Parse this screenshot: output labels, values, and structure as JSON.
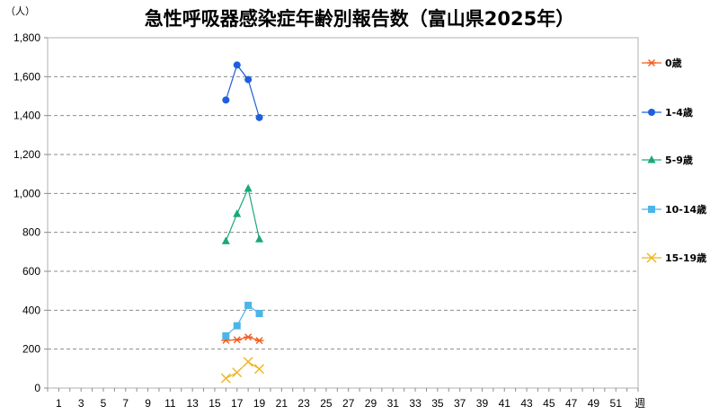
{
  "chart_data": {
    "type": "line",
    "title": "急性呼吸器感染症年齢別報告数（富山県2025年）",
    "ylabel": "（人）",
    "xlabel": "週",
    "ylim": [
      0,
      1800
    ],
    "yticks": [
      0,
      200,
      400,
      600,
      800,
      1000,
      1200,
      1400,
      1600,
      1800
    ],
    "ytick_labels": [
      "0",
      "200",
      "400",
      "600",
      "800",
      "1,000",
      "1,200",
      "1,400",
      "1,600",
      "1,800"
    ],
    "xlim": [
      0,
      53
    ],
    "xticks": [
      1,
      3,
      5,
      7,
      9,
      11,
      13,
      15,
      17,
      19,
      21,
      23,
      25,
      27,
      29,
      31,
      33,
      35,
      37,
      39,
      41,
      43,
      45,
      47,
      49,
      51
    ],
    "grid": "horizontal-dashed",
    "legend_position": "right",
    "series": [
      {
        "name": "0歳",
        "color": "#f25c1f",
        "marker": "asterisk",
        "x": [
          16,
          17,
          18,
          19
        ],
        "values": [
          245,
          248,
          262,
          244
        ]
      },
      {
        "name": "1-4歳",
        "color": "#1f5fdc",
        "marker": "circle",
        "x": [
          16,
          17,
          18,
          19
        ],
        "values": [
          1480,
          1660,
          1585,
          1390
        ]
      },
      {
        "name": "5-9歳",
        "color": "#1aa87a",
        "marker": "triangle",
        "x": [
          16,
          17,
          18,
          19
        ],
        "values": [
          755,
          895,
          1025,
          765
        ]
      },
      {
        "name": "10-14歳",
        "color": "#4cb5e8",
        "marker": "square",
        "x": [
          16,
          17,
          18,
          19
        ],
        "values": [
          268,
          320,
          425,
          383
        ]
      },
      {
        "name": "15-19歳",
        "color": "#f0b520",
        "marker": "x",
        "x": [
          16,
          17,
          18,
          19
        ],
        "values": [
          50,
          80,
          135,
          98
        ]
      }
    ]
  }
}
